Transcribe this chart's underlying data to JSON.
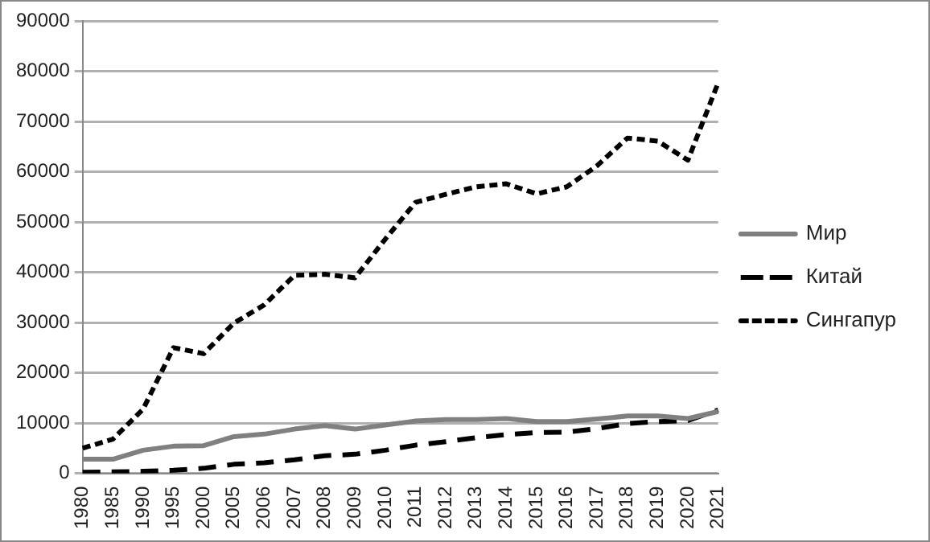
{
  "chart_data": {
    "type": "line",
    "categories": [
      "1980",
      "1985",
      "1990",
      "1995",
      "2000",
      "2005",
      "2006",
      "2007",
      "2008",
      "2009",
      "2010",
      "2011",
      "2012",
      "2013",
      "2014",
      "2015",
      "2016",
      "2017",
      "2018",
      "2019",
      "2020",
      "2021"
    ],
    "series": [
      {
        "name": "Мир",
        "color": "#808080",
        "line_style": "solid",
        "values": [
          2800,
          2800,
          4600,
          5400,
          5500,
          7300,
          7800,
          8800,
          9500,
          8800,
          9600,
          10400,
          10700,
          10700,
          10900,
          10300,
          10300,
          10800,
          11400,
          11400,
          10900,
          12300
        ]
      },
      {
        "name": "Китай",
        "color": "#000000",
        "line_style": "dashed",
        "values": [
          200,
          300,
          400,
          600,
          1000,
          1800,
          2100,
          2700,
          3500,
          3800,
          4600,
          5600,
          6300,
          7100,
          7700,
          8100,
          8200,
          8900,
          9900,
          10300,
          10500,
          12600
        ]
      },
      {
        "name": "Сингапур",
        "color": "#000000",
        "line_style": "dotted",
        "values": [
          5000,
          6800,
          12800,
          25000,
          23800,
          29900,
          33500,
          39400,
          39600,
          38900,
          46600,
          53900,
          55500,
          57000,
          57600,
          55600,
          57000,
          61200,
          66700,
          66100,
          62300,
          77700
        ]
      }
    ],
    "ylim": [
      0,
      90000
    ],
    "yticks": [
      0,
      10000,
      20000,
      30000,
      40000,
      50000,
      60000,
      70000,
      80000,
      90000
    ],
    "grid": "y",
    "legend": "right",
    "marker": "none"
  }
}
